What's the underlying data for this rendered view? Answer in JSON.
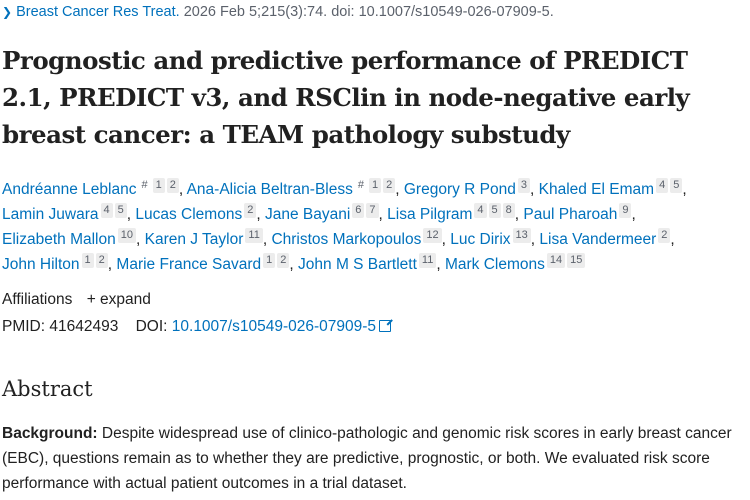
{
  "citation": {
    "journal": "Breast Cancer Res Treat.",
    "details": "2026 Feb 5;215(3):74. doi: 10.1007/s10549-026-07909-5."
  },
  "title": "Prognostic and predictive performance of PREDICT 2.1, PREDICT v3, and RSClin in node-negative early breast cancer: a TEAM pathology substudy",
  "authors": [
    {
      "name": "Andréanne Leblanc",
      "sups": [
        "#",
        "1",
        "2"
      ]
    },
    {
      "name": "Ana-Alicia Beltran-Bless",
      "sups": [
        "#",
        "1",
        "2"
      ]
    },
    {
      "name": "Gregory R Pond",
      "sups": [
        "3"
      ]
    },
    {
      "name": "Khaled El Emam",
      "sups": [
        "4",
        "5"
      ]
    },
    {
      "name": "Lamin Juwara",
      "sups": [
        "4",
        "5"
      ]
    },
    {
      "name": "Lucas Clemons",
      "sups": [
        "2"
      ]
    },
    {
      "name": "Jane Bayani",
      "sups": [
        "6",
        "7"
      ]
    },
    {
      "name": "Lisa Pilgram",
      "sups": [
        "4",
        "5",
        "8"
      ]
    },
    {
      "name": "Paul Pharoah",
      "sups": [
        "9"
      ]
    },
    {
      "name": "Elizabeth Mallon",
      "sups": [
        "10"
      ]
    },
    {
      "name": "Karen J Taylor",
      "sups": [
        "11"
      ]
    },
    {
      "name": "Christos Markopoulos",
      "sups": [
        "12"
      ]
    },
    {
      "name": "Luc Dirix",
      "sups": [
        "13"
      ]
    },
    {
      "name": "Lisa Vandermeer",
      "sups": [
        "2"
      ]
    },
    {
      "name": "John Hilton",
      "sups": [
        "1",
        "2"
      ]
    },
    {
      "name": "Marie France Savard",
      "sups": [
        "1",
        "2"
      ]
    },
    {
      "name": "John M S Bartlett",
      "sups": [
        "11"
      ]
    },
    {
      "name": "Mark Clemons",
      "sups": [
        "14",
        "15"
      ]
    }
  ],
  "affiliations": {
    "label": "Affiliations",
    "expand_label": "+ expand"
  },
  "ids": {
    "pmid_label": "PMID:",
    "pmid": "41642493",
    "doi_label": "DOI:",
    "doi": "10.1007/s10549-026-07909-5"
  },
  "abstract": {
    "heading": "Abstract",
    "background_label": "Background:",
    "background_text": " Despite widespread use of clinico-pathologic and genomic risk scores in early breast cancer (EBC), questions remain as to whether they are predictive, prognostic, or both. We evaluated risk score performance with actual patient outcomes in a trial dataset."
  }
}
